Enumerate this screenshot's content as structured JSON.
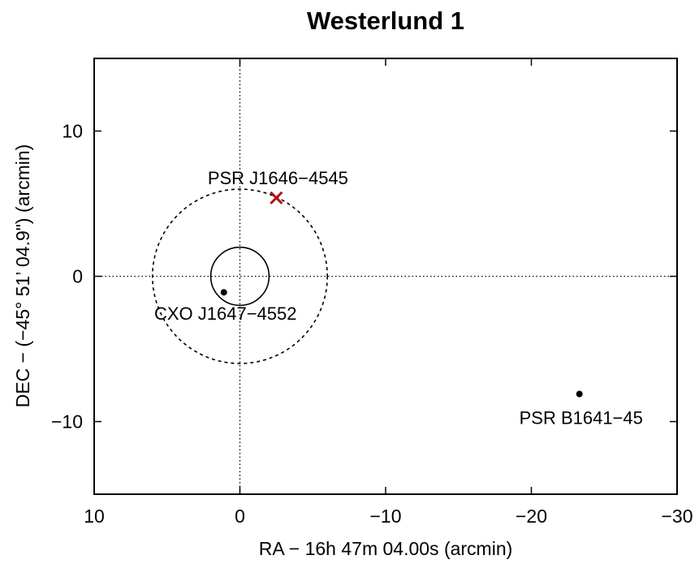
{
  "chart_data": {
    "type": "scatter",
    "title": "Westerlund 1",
    "xlabel": "RA − 16h 47m 04.00s (arcmin)",
    "ylabel": "DEC − (−45° 51’ 04.9\") (arcmin)",
    "xlim": [
      10,
      -30
    ],
    "ylim": [
      -15,
      15
    ],
    "xticks": [
      10,
      0,
      -10,
      -20,
      -30
    ],
    "xtick_labels": [
      "10",
      "0",
      "−10",
      "−20",
      "−30"
    ],
    "yticks": [
      10,
      0,
      -10
    ],
    "ytick_labels": [
      "10",
      "0",
      "−10"
    ],
    "grid": false,
    "reference_lines": {
      "x": 0,
      "y": 0,
      "style": "dotted"
    },
    "circles": [
      {
        "center": [
          0,
          0
        ],
        "radius": 2,
        "style": "solid"
      },
      {
        "center": [
          0,
          0
        ],
        "radius": 6,
        "style": "dashed"
      }
    ],
    "points": [
      {
        "label": "CXO J1647−4552",
        "x": 1.1,
        "y": -1.1,
        "marker": "dot",
        "color": "#000000"
      },
      {
        "label": "PSR B1641−45",
        "x": -23.3,
        "y": -8.1,
        "marker": "dot",
        "color": "#000000"
      },
      {
        "label": "PSR J1646−4545",
        "x": -2.5,
        "y": 5.4,
        "marker": "cross",
        "color": "#b01414"
      }
    ]
  }
}
